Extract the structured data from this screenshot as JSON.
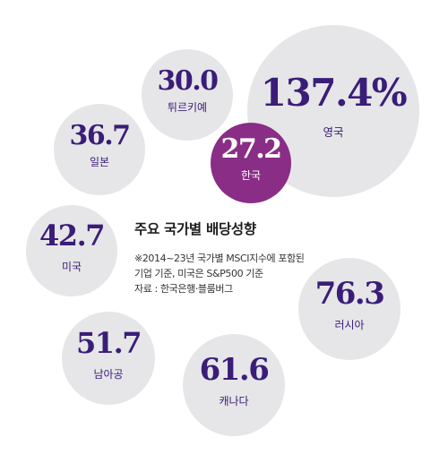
{
  "chart_data": {
    "type": "bubble",
    "title": "주요 국가별 배당성향",
    "notes": [
      "※2014~23년 국가별 MSCI지수에 포함된",
      "기업 기준, 미국은 S&P500 기준",
      "자료 : 한국은행·블룸버그"
    ],
    "bubbles": [
      {
        "country": "영국",
        "value": 137.4,
        "value_text": "137.4%",
        "highlight": false
      },
      {
        "country": "튀르키예",
        "value": 30.0,
        "value_text": "30.0",
        "highlight": false
      },
      {
        "country": "일본",
        "value": 36.7,
        "value_text": "36.7",
        "highlight": false
      },
      {
        "country": "한국",
        "value": 27.2,
        "value_text": "27.2",
        "highlight": true
      },
      {
        "country": "미국",
        "value": 42.7,
        "value_text": "42.7",
        "highlight": false
      },
      {
        "country": "러시아",
        "value": 76.3,
        "value_text": "76.3",
        "highlight": false
      },
      {
        "country": "남아공",
        "value": 51.7,
        "value_text": "51.7",
        "highlight": false
      },
      {
        "country": "캐나다",
        "value": 61.6,
        "value_text": "61.6",
        "highlight": false
      }
    ]
  },
  "colors": {
    "bubble_fill": "#e6e6e8",
    "highlight_fill": "#8a2d86",
    "value_text": "#3a1d78",
    "label_text": "#3a1d78",
    "highlight_text": "#ffffff"
  }
}
